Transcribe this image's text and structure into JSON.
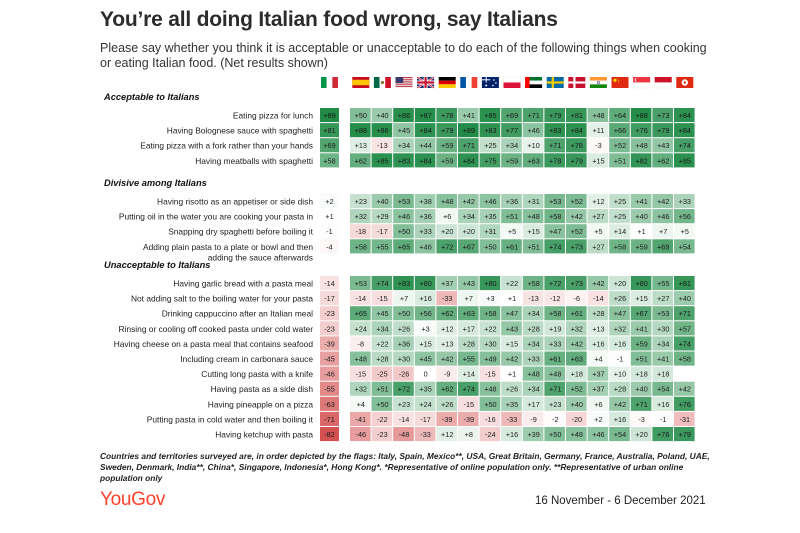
{
  "title": "You’re all doing Italian food wrong, say Italians",
  "subtitle": "Please say whether you think it is acceptable or unacceptable to do each of the following things when cooking or eating Italian food. (Net results shown)",
  "footnote": "Countries and territories surveyed are, in order depicted by the flags: Italy, Spain, Mexico**, USA, Great Britain, Germany, France, Australia, Poland, UAE, Sweden, Denmark, India**, China*, Singapore, Indonesia*, Hong Kong*. *Representative of online population only. **Representative of urban online population only",
  "logo": "YouGov",
  "date_range": "16 November - 6 December 2021",
  "colors": {
    "positive": "#1e8a45",
    "negative": "#d04040",
    "neutral": "#ffffff"
  },
  "chart_data": {
    "type": "heatmap",
    "columns": [
      "Italy",
      "Spain",
      "Mexico",
      "USA",
      "Great Britain",
      "Germany",
      "France",
      "Australia",
      "Poland",
      "UAE",
      "Sweden",
      "Denmark",
      "India",
      "China",
      "Singapore",
      "Indonesia",
      "Hong Kong"
    ],
    "flags": [
      "italy-flag",
      "spain-flag",
      "mexico-flag",
      "usa-flag",
      "great-britain-flag",
      "germany-flag",
      "france-flag",
      "australia-flag",
      "poland-flag",
      "uae-flag",
      "sweden-flag",
      "denmark-flag",
      "india-flag",
      "china-flag",
      "singapore-flag",
      "indonesia-flag",
      "hong-kong-flag"
    ],
    "groups": [
      {
        "heading": "Acceptable to Italians",
        "rows": [
          {
            "label": [
              "Eating pizza for lunch"
            ],
            "values": [
              89,
              50,
              40,
              86,
              87,
              78,
              41,
              85,
              69,
              71,
              79,
              81,
              48,
              64,
              88,
              73,
              84
            ]
          },
          {
            "label": [
              "Having Bolognese sauce with spaghetti"
            ],
            "values": [
              81,
              88,
              86,
              45,
              84,
              79,
              89,
              83,
              77,
              46,
              83,
              84,
              11,
              66,
              76,
              79,
              84
            ]
          },
          {
            "label": [
              "Eating pizza with a fork rather than your hands"
            ],
            "values": [
              69,
              13,
              -13,
              34,
              44,
              59,
              71,
              25,
              34,
              10,
              71,
              78,
              -3,
              52,
              48,
              43,
              74
            ]
          },
          {
            "label": [
              "Having meatballs with spaghetti"
            ],
            "values": [
              58,
              62,
              85,
              83,
              84,
              59,
              84,
              75,
              59,
              63,
              78,
              79,
              15,
              51,
              82,
              62,
              85
            ]
          }
        ]
      },
      {
        "heading": "Divisive among Italians",
        "rows": [
          {
            "label": [
              "Having risotto as an appetiser or side dish"
            ],
            "values": [
              2,
              23,
              40,
              53,
              38,
              48,
              42,
              46,
              36,
              31,
              53,
              52,
              12,
              25,
              41,
              42,
              33
            ]
          },
          {
            "label": [
              "Putting oil in the water you are cooking your pasta in"
            ],
            "values": [
              1,
              32,
              29,
              46,
              36,
              6,
              34,
              35,
              51,
              48,
              58,
              42,
              27,
              25,
              40,
              46,
              56
            ]
          },
          {
            "label": [
              "Snapping dry spaghetti before boiling it"
            ],
            "values": [
              -1,
              -18,
              -17,
              50,
              33,
              20,
              20,
              31,
              5,
              15,
              47,
              52,
              5,
              14,
              1,
              7,
              5
            ]
          },
          {
            "label": [
              "Adding plain pasta to a plate or bowl and then",
              "adding the sauce afterwards"
            ],
            "values": [
              -4,
              58,
              55,
              65,
              46,
              72,
              67,
              50,
              61,
              51,
              74,
              73,
              27,
              58,
              59,
              69,
              54
            ]
          }
        ]
      },
      {
        "heading": "Unacceptable to Italians",
        "rows": [
          {
            "label": [
              "Having garlic bread with a pasta meal"
            ],
            "values": [
              -14,
              53,
              74,
              83,
              80,
              37,
              43,
              80,
              22,
              58,
              72,
              73,
              42,
              20,
              80,
              55,
              81
            ]
          },
          {
            "label": [
              "Not adding salt to the boiling water for your pasta"
            ],
            "values": [
              -17,
              -14,
              -15,
              7,
              16,
              -33,
              7,
              3,
              1,
              -13,
              -12,
              -6,
              -14,
              26,
              15,
              27,
              40
            ]
          },
          {
            "label": [
              "Drinking cappuccino after an Italian meal"
            ],
            "values": [
              -23,
              65,
              45,
              50,
              56,
              62,
              63,
              58,
              47,
              34,
              58,
              61,
              28,
              47,
              67,
              53,
              71
            ]
          },
          {
            "label": [
              "Rinsing or cooling off cooked pasta under cold water"
            ],
            "values": [
              -23,
              24,
              34,
              26,
              3,
              12,
              17,
              22,
              43,
              28,
              19,
              32,
              13,
              32,
              41,
              30,
              57
            ]
          },
          {
            "label": [
              "Having cheese on a pasta meal that contains seafood"
            ],
            "values": [
              -39,
              -8,
              22,
              36,
              15,
              13,
              28,
              30,
              15,
              34,
              33,
              42,
              16,
              16,
              59,
              34,
              74
            ]
          },
          {
            "label": [
              "Including cream in carbonara sauce"
            ],
            "values": [
              -45,
              48,
              28,
              30,
              45,
              42,
              55,
              49,
              42,
              33,
              61,
              63,
              4,
              -1,
              51,
              41,
              58
            ]
          },
          {
            "label": [
              "Cutting long pasta with a knife"
            ],
            "values": [
              -46,
              -15,
              -25,
              -26,
              0,
              -9,
              14,
              -15,
              1,
              48,
              48,
              18,
              37,
              10,
              18,
              18,
              null
            ]
          },
          {
            "label": [
              "Having pasta as a side dish"
            ],
            "values": [
              -55,
              32,
              51,
              72,
              35,
              62,
              74,
              48,
              26,
              34,
              71,
              52,
              37,
              28,
              40,
              54,
              42
            ]
          },
          {
            "label": [
              "Having pineapple on a pizza"
            ],
            "values": [
              -63,
              4,
              50,
              23,
              24,
              26,
              -15,
              50,
              35,
              17,
              23,
              40,
              6,
              42,
              71,
              16,
              76
            ]
          },
          {
            "label": [
              "Putting pasta in cold water and then boiling it"
            ],
            "values": [
              -71,
              -41,
              -22,
              -14,
              -17,
              -39,
              -39,
              -16,
              -33,
              -9,
              -2,
              -20,
              2,
              16,
              -3,
              -1,
              -31
            ]
          },
          {
            "label": [
              "Having ketchup with pasta"
            ],
            "values": [
              -82,
              -46,
              -23,
              -48,
              -33,
              12,
              8,
              -24,
              16,
              39,
              50,
              48,
              46,
              54,
              20,
              76,
              79
            ]
          }
        ]
      }
    ]
  }
}
